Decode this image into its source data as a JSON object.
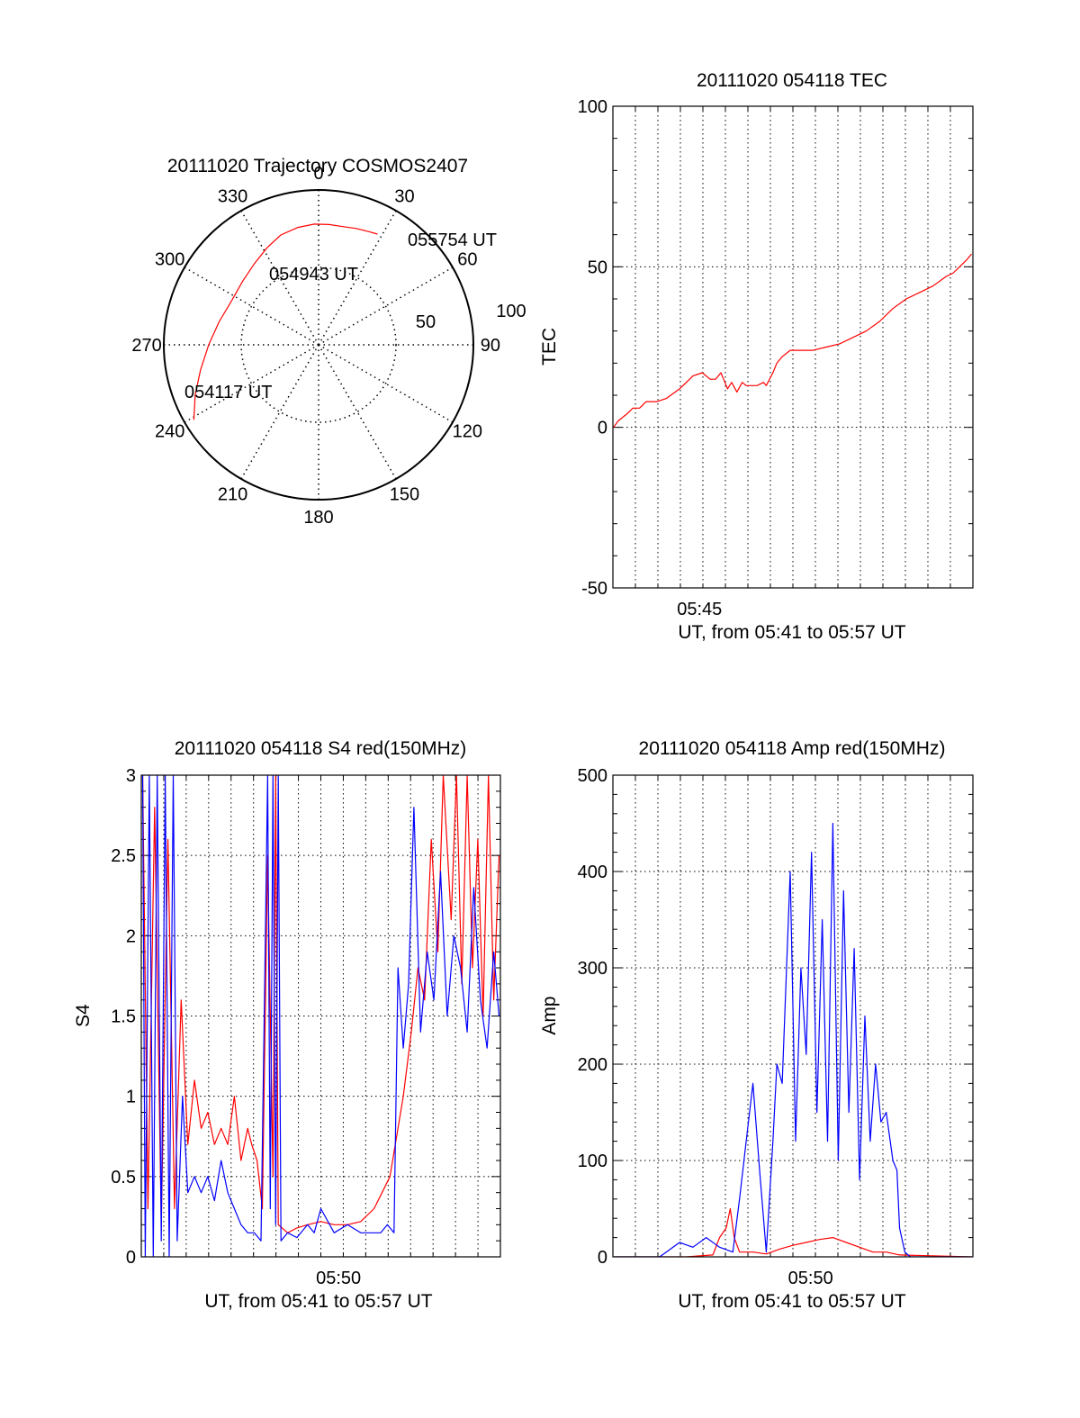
{
  "colors": {
    "red_series": "#ff0000",
    "blue_series": "#0000ff",
    "axis": "#000000",
    "grid": "#000000"
  },
  "chart_data": [
    {
      "type": "polar",
      "title": "20111020 Trajectory COSMOS2407",
      "angle_labels": [
        "0",
        "30",
        "60",
        "90",
        "120",
        "150",
        "180",
        "210",
        "240",
        "270",
        "300",
        "330"
      ],
      "radial_labels": [
        "50",
        "100"
      ],
      "radial_range": [
        0,
        100
      ],
      "grid": true,
      "series": [
        {
          "color": "#ff0000",
          "points": [
            {
              "az": 239,
              "r": 94
            },
            {
              "az": 248,
              "r": 86
            },
            {
              "az": 258,
              "r": 78
            },
            {
              "az": 270,
              "r": 71
            },
            {
              "az": 283,
              "r": 66
            },
            {
              "az": 297,
              "r": 63
            },
            {
              "az": 310,
              "r": 64
            },
            {
              "az": 322,
              "r": 67
            },
            {
              "az": 332,
              "r": 71
            },
            {
              "az": 341,
              "r": 75
            },
            {
              "az": 350,
              "r": 77
            },
            {
              "az": 358,
              "r": 78
            },
            {
              "az": 5,
              "r": 78
            },
            {
              "az": 12,
              "r": 78
            },
            {
              "az": 18,
              "r": 79
            },
            {
              "az": 24,
              "r": 80
            },
            {
              "az": 28,
              "r": 81
            }
          ]
        }
      ],
      "annotations": [
        {
          "text": "055754 UT",
          "az": 35,
          "r": 90
        },
        {
          "text": "054943 UT",
          "az": 352,
          "r": 45
        },
        {
          "text": "054117 UT",
          "az": 244,
          "r": 82
        }
      ]
    },
    {
      "type": "line",
      "title": "20111020 054118 TEC",
      "xlabel": "UT, from 05:41 to 05:57 UT",
      "ylabel": "TEC",
      "xlim": [
        5.685,
        5.955
      ],
      "ylim": [
        -50,
        100
      ],
      "yticks": [
        -50,
        0,
        50,
        100
      ],
      "xticks": [
        {
          "value": 5.75,
          "label": "05:45"
        }
      ],
      "grid": true,
      "series": [
        {
          "color": "#ff0000",
          "x": [
            5.6855,
            5.689,
            5.695,
            5.7,
            5.705,
            5.71,
            5.718,
            5.725,
            5.735,
            5.745,
            5.752,
            5.758,
            5.762,
            5.766,
            5.768,
            5.771,
            5.774,
            5.778,
            5.782,
            5.785,
            5.79,
            5.793,
            5.798,
            5.8,
            5.805,
            5.808,
            5.812,
            5.818,
            5.825,
            5.835,
            5.845,
            5.855,
            5.865,
            5.875,
            5.885,
            5.895,
            5.905,
            5.915,
            5.925,
            5.935,
            5.94,
            5.945,
            5.95,
            5.954
          ],
          "y": [
            0,
            2,
            4,
            6,
            6,
            8,
            8,
            9,
            12,
            16,
            17,
            15,
            15,
            17,
            15,
            12,
            14,
            11,
            14,
            13,
            13,
            13,
            14,
            13,
            17,
            20,
            22,
            24,
            24,
            24,
            25,
            26,
            28,
            30,
            33,
            37,
            40,
            42,
            44,
            47,
            48,
            50,
            52,
            54
          ]
        }
      ]
    },
    {
      "type": "line",
      "title": "20111020 054118 S4 red(150MHz)",
      "xlabel": "UT, from 05:41 to 05:57 UT",
      "ylabel": "S4",
      "xlim": [
        5.685,
        5.955
      ],
      "ylim": [
        0,
        3
      ],
      "yticks": [
        0,
        0.5,
        1,
        1.5,
        2,
        2.5,
        3
      ],
      "xticks": [
        {
          "value": 5.8333,
          "label": "05:50"
        }
      ],
      "grid": true,
      "series": [
        {
          "color": "#ff0000",
          "x": [
            5.686,
            5.69,
            5.695,
            5.7,
            5.705,
            5.71,
            5.715,
            5.72,
            5.725,
            5.73,
            5.735,
            5.74,
            5.745,
            5.75,
            5.755,
            5.76,
            5.765,
            5.768,
            5.772,
            5.776,
            5.78,
            5.784,
            5.786,
            5.788,
            5.795,
            5.802,
            5.81,
            5.82,
            5.83,
            5.84,
            5.85,
            5.86,
            5.866,
            5.872,
            5.878,
            5.882,
            5.888,
            5.893,
            5.898,
            5.903,
            5.908,
            5.912,
            5.918,
            5.922,
            5.926,
            5.93,
            5.934,
            5.938,
            5.942,
            5.946,
            5.95,
            5.954
          ],
          "y": [
            3.0,
            0.3,
            2.8,
            0.2,
            2.6,
            0.3,
            1.6,
            0.7,
            1.1,
            0.8,
            0.9,
            0.7,
            0.8,
            0.7,
            1.0,
            0.6,
            0.8,
            0.7,
            0.6,
            0.3,
            2.5,
            0.5,
            3.0,
            0.2,
            0.15,
            0.18,
            0.2,
            0.22,
            0.2,
            0.2,
            0.22,
            0.3,
            0.4,
            0.5,
            0.8,
            1.0,
            1.4,
            1.8,
            1.6,
            2.6,
            1.9,
            3.0,
            2.1,
            3.0,
            1.7,
            3.0,
            1.8,
            2.6,
            1.5,
            3.0,
            1.6,
            2.5
          ]
        },
        {
          "color": "#0000ff",
          "x": [
            5.686,
            5.688,
            5.691,
            5.694,
            5.697,
            5.7,
            5.703,
            5.706,
            5.709,
            5.712,
            5.716,
            5.72,
            5.725,
            5.73,
            5.735,
            5.74,
            5.745,
            5.75,
            5.755,
            5.76,
            5.765,
            5.77,
            5.775,
            5.78,
            5.782,
            5.784,
            5.786,
            5.788,
            5.79,
            5.795,
            5.802,
            5.81,
            5.815,
            5.82,
            5.83,
            5.84,
            5.85,
            5.86,
            5.865,
            5.87,
            5.875,
            5.878,
            5.882,
            5.886,
            5.89,
            5.895,
            5.9,
            5.905,
            5.91,
            5.915,
            5.92,
            5.925,
            5.93,
            5.935,
            5.94,
            5.945,
            5.95,
            5.954
          ],
          "y": [
            3.0,
            0.0,
            3.0,
            0.0,
            3.0,
            0.1,
            3.0,
            0.0,
            3.0,
            0.1,
            1.0,
            0.4,
            0.5,
            0.4,
            0.5,
            0.35,
            0.6,
            0.4,
            0.3,
            0.2,
            0.15,
            0.15,
            0.1,
            3.0,
            0.3,
            3.0,
            0.2,
            3.0,
            0.1,
            0.15,
            0.12,
            0.2,
            0.15,
            0.3,
            0.15,
            0.2,
            0.15,
            0.15,
            0.15,
            0.2,
            0.15,
            1.8,
            1.3,
            1.7,
            2.8,
            1.4,
            1.9,
            1.6,
            2.4,
            1.5,
            2.0,
            1.8,
            1.4,
            2.3,
            1.6,
            1.3,
            1.9,
            1.5
          ]
        }
      ]
    },
    {
      "type": "line",
      "title": "20111020 054118 Amp red(150MHz)",
      "xlabel": "UT, from 05:41 to 05:57 UT",
      "ylabel": "Amp",
      "xlim": [
        5.685,
        5.955
      ],
      "ylim": [
        0,
        500
      ],
      "yticks": [
        0,
        100,
        200,
        300,
        400,
        500
      ],
      "xticks": [
        {
          "value": 5.8333,
          "label": "05:50"
        }
      ],
      "grid": true,
      "series": [
        {
          "color": "#ff0000",
          "x": [
            5.686,
            5.74,
            5.76,
            5.765,
            5.77,
            5.773,
            5.776,
            5.78,
            5.79,
            5.8,
            5.81,
            5.82,
            5.83,
            5.84,
            5.85,
            5.86,
            5.87,
            5.88,
            5.89,
            5.9,
            5.954
          ],
          "y": [
            0,
            0,
            2,
            20,
            30,
            50,
            20,
            5,
            5,
            3,
            8,
            12,
            15,
            18,
            20,
            15,
            10,
            5,
            5,
            2,
            0
          ]
        },
        {
          "color": "#0000ff",
          "x": [
            5.686,
            5.72,
            5.725,
            5.735,
            5.745,
            5.755,
            5.765,
            5.775,
            5.78,
            5.785,
            5.79,
            5.795,
            5.8,
            5.805,
            5.808,
            5.812,
            5.818,
            5.822,
            5.826,
            5.83,
            5.834,
            5.838,
            5.842,
            5.846,
            5.85,
            5.854,
            5.858,
            5.862,
            5.866,
            5.87,
            5.874,
            5.878,
            5.882,
            5.886,
            5.89,
            5.895,
            5.898,
            5.9,
            5.904,
            5.908,
            5.954
          ],
          "y": [
            0,
            0,
            5,
            15,
            10,
            20,
            10,
            5,
            60,
            120,
            180,
            90,
            5,
            120,
            200,
            180,
            400,
            120,
            300,
            210,
            420,
            150,
            350,
            120,
            450,
            100,
            380,
            150,
            320,
            80,
            250,
            120,
            200,
            140,
            150,
            100,
            90,
            30,
            5,
            0,
            0
          ]
        }
      ]
    }
  ]
}
